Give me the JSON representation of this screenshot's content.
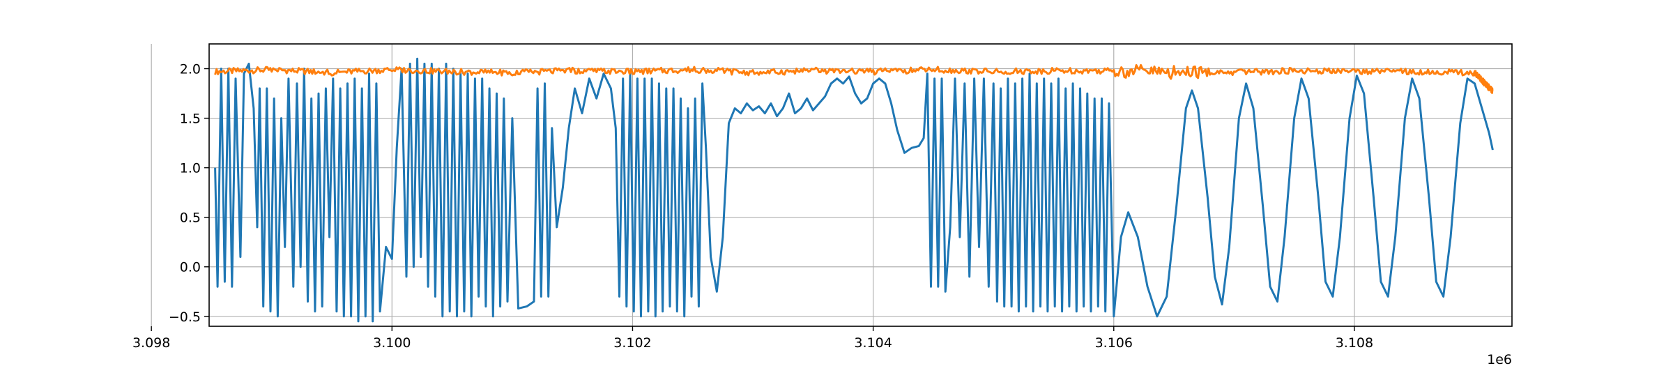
{
  "chart_data": {
    "type": "line",
    "title": "",
    "xlabel": "",
    "ylabel": "",
    "x_offset_label": "1e6",
    "xlim": [
      3.09848,
      3.10931
    ],
    "ylim": [
      -0.6,
      2.25
    ],
    "grid": true,
    "legend": "none",
    "xticks": [
      {
        "value": 3.098,
        "label": "3.098"
      },
      {
        "value": 3.1,
        "label": "3.100"
      },
      {
        "value": 3.102,
        "label": "3.102"
      },
      {
        "value": 3.104,
        "label": "3.104"
      },
      {
        "value": 3.106,
        "label": "3.106"
      },
      {
        "value": 3.108,
        "label": "3.108"
      }
    ],
    "yticks": [
      {
        "value": -0.5,
        "label": "−0.5"
      },
      {
        "value": 0.0,
        "label": "0.0"
      },
      {
        "value": 0.5,
        "label": "0.5"
      },
      {
        "value": 1.0,
        "label": "1.0"
      },
      {
        "value": 1.5,
        "label": "1.5"
      },
      {
        "value": 2.0,
        "label": "2.0"
      }
    ],
    "series": [
      {
        "color": "#1f77b4",
        "points": [
          [
            3.09853,
            1.0
          ],
          [
            3.09855,
            -0.2
          ],
          [
            3.09858,
            2.0
          ],
          [
            3.09861,
            -0.15
          ],
          [
            3.09864,
            2.0
          ],
          [
            3.09867,
            -0.2
          ],
          [
            3.0987,
            1.9
          ],
          [
            3.09874,
            0.1
          ],
          [
            3.09877,
            1.95
          ],
          [
            3.09881,
            2.05
          ],
          [
            3.09885,
            1.6
          ],
          [
            3.09888,
            0.4
          ],
          [
            3.0989,
            1.8
          ],
          [
            3.09893,
            -0.4
          ],
          [
            3.09896,
            1.8
          ],
          [
            3.09899,
            -0.45
          ],
          [
            3.09902,
            1.7
          ],
          [
            3.09905,
            -0.5
          ],
          [
            3.09908,
            1.5
          ],
          [
            3.09911,
            0.2
          ],
          [
            3.09914,
            1.9
          ],
          [
            3.09918,
            -0.2
          ],
          [
            3.09921,
            1.85
          ],
          [
            3.09924,
            0.0
          ],
          [
            3.09927,
            2.0
          ],
          [
            3.0993,
            -0.35
          ],
          [
            3.09933,
            1.7
          ],
          [
            3.09936,
            -0.45
          ],
          [
            3.09939,
            1.75
          ],
          [
            3.09942,
            -0.4
          ],
          [
            3.09945,
            1.8
          ],
          [
            3.09948,
            0.3
          ],
          [
            3.09951,
            1.9
          ],
          [
            3.09954,
            -0.45
          ],
          [
            3.09957,
            1.8
          ],
          [
            3.0996,
            -0.5
          ],
          [
            3.09963,
            1.85
          ],
          [
            3.09966,
            -0.5
          ],
          [
            3.09969,
            1.9
          ],
          [
            3.09972,
            -0.55
          ],
          [
            3.09975,
            1.8
          ],
          [
            3.09978,
            -0.5
          ],
          [
            3.09981,
            1.95
          ],
          [
            3.09984,
            -0.55
          ],
          [
            3.09987,
            1.85
          ],
          [
            3.0999,
            -0.45
          ],
          [
            3.09995,
            0.2
          ],
          [
            3.1,
            0.08
          ],
          [
            3.10004,
            1.2
          ],
          [
            3.10008,
            2.0
          ],
          [
            3.10012,
            -0.1
          ],
          [
            3.10015,
            2.05
          ],
          [
            3.10018,
            0.0
          ],
          [
            3.10021,
            2.1
          ],
          [
            3.10024,
            0.1
          ],
          [
            3.10027,
            2.05
          ],
          [
            3.1003,
            -0.2
          ],
          [
            3.10033,
            2.05
          ],
          [
            3.10036,
            -0.3
          ],
          [
            3.10039,
            2.0
          ],
          [
            3.10042,
            -0.5
          ],
          [
            3.10045,
            2.05
          ],
          [
            3.10048,
            -0.45
          ],
          [
            3.10051,
            2.0
          ],
          [
            3.10054,
            -0.5
          ],
          [
            3.10057,
            1.95
          ],
          [
            3.1006,
            -0.45
          ],
          [
            3.10063,
            1.95
          ],
          [
            3.10066,
            -0.5
          ],
          [
            3.10069,
            1.9
          ],
          [
            3.10072,
            -0.3
          ],
          [
            3.10075,
            1.9
          ],
          [
            3.10078,
            -0.4
          ],
          [
            3.10081,
            1.8
          ],
          [
            3.10084,
            -0.5
          ],
          [
            3.10087,
            1.75
          ],
          [
            3.1009,
            -0.4
          ],
          [
            3.10093,
            1.7
          ],
          [
            3.10096,
            -0.35
          ],
          [
            3.101,
            1.5
          ],
          [
            3.10105,
            -0.42
          ],
          [
            3.10112,
            -0.4
          ],
          [
            3.10118,
            -0.35
          ],
          [
            3.10121,
            1.8
          ],
          [
            3.10124,
            -0.3
          ],
          [
            3.10127,
            1.85
          ],
          [
            3.1013,
            -0.3
          ],
          [
            3.10133,
            1.4
          ],
          [
            3.10137,
            0.4
          ],
          [
            3.10142,
            0.8
          ],
          [
            3.10147,
            1.4
          ],
          [
            3.10152,
            1.8
          ],
          [
            3.10158,
            1.55
          ],
          [
            3.10164,
            1.9
          ],
          [
            3.1017,
            1.7
          ],
          [
            3.10176,
            1.95
          ],
          [
            3.10182,
            1.8
          ],
          [
            3.10186,
            1.4
          ],
          [
            3.10189,
            -0.3
          ],
          [
            3.10192,
            1.9
          ],
          [
            3.10195,
            -0.4
          ],
          [
            3.10198,
            1.95
          ],
          [
            3.10201,
            -0.45
          ],
          [
            3.10204,
            1.9
          ],
          [
            3.10207,
            -0.5
          ],
          [
            3.1021,
            1.9
          ],
          [
            3.10213,
            -0.45
          ],
          [
            3.10216,
            1.9
          ],
          [
            3.10219,
            -0.5
          ],
          [
            3.10222,
            1.85
          ],
          [
            3.10225,
            -0.45
          ],
          [
            3.10228,
            1.8
          ],
          [
            3.10231,
            -0.4
          ],
          [
            3.10234,
            1.8
          ],
          [
            3.10237,
            -0.45
          ],
          [
            3.1024,
            1.7
          ],
          [
            3.10243,
            -0.5
          ],
          [
            3.10246,
            1.6
          ],
          [
            3.10249,
            -0.3
          ],
          [
            3.10252,
            1.7
          ],
          [
            3.10255,
            -0.4
          ],
          [
            3.10258,
            1.85
          ],
          [
            3.10261,
            1.2
          ],
          [
            3.10265,
            0.1
          ],
          [
            3.1027,
            -0.25
          ],
          [
            3.10275,
            0.3
          ],
          [
            3.1028,
            1.45
          ],
          [
            3.10285,
            1.6
          ],
          [
            3.1029,
            1.55
          ],
          [
            3.10295,
            1.65
          ],
          [
            3.103,
            1.58
          ],
          [
            3.10305,
            1.62
          ],
          [
            3.1031,
            1.55
          ],
          [
            3.10315,
            1.65
          ],
          [
            3.1032,
            1.52
          ],
          [
            3.10325,
            1.6
          ],
          [
            3.1033,
            1.75
          ],
          [
            3.10335,
            1.55
          ],
          [
            3.1034,
            1.6
          ],
          [
            3.10345,
            1.7
          ],
          [
            3.1035,
            1.58
          ],
          [
            3.10355,
            1.65
          ],
          [
            3.1036,
            1.72
          ],
          [
            3.10365,
            1.85
          ],
          [
            3.1037,
            1.9
          ],
          [
            3.10375,
            1.85
          ],
          [
            3.1038,
            1.92
          ],
          [
            3.10385,
            1.75
          ],
          [
            3.1039,
            1.65
          ],
          [
            3.10395,
            1.7
          ],
          [
            3.104,
            1.85
          ],
          [
            3.10405,
            1.9
          ],
          [
            3.1041,
            1.85
          ],
          [
            3.10415,
            1.65
          ],
          [
            3.1042,
            1.38
          ],
          [
            3.10426,
            1.15
          ],
          [
            3.10432,
            1.2
          ],
          [
            3.10438,
            1.22
          ],
          [
            3.10442,
            1.3
          ],
          [
            3.10445,
            1.95
          ],
          [
            3.10448,
            -0.2
          ],
          [
            3.10451,
            1.9
          ],
          [
            3.10454,
            -0.2
          ],
          [
            3.10457,
            1.9
          ],
          [
            3.1046,
            -0.25
          ],
          [
            3.10464,
            0.4
          ],
          [
            3.10468,
            1.9
          ],
          [
            3.10472,
            0.3
          ],
          [
            3.10476,
            1.85
          ],
          [
            3.1048,
            -0.1
          ],
          [
            3.10484,
            1.9
          ],
          [
            3.10488,
            0.2
          ],
          [
            3.10492,
            1.9
          ],
          [
            3.10496,
            -0.2
          ],
          [
            3.105,
            1.85
          ],
          [
            3.10503,
            -0.35
          ],
          [
            3.10506,
            1.8
          ],
          [
            3.10509,
            -0.4
          ],
          [
            3.10512,
            1.9
          ],
          [
            3.10515,
            -0.4
          ],
          [
            3.10518,
            1.85
          ],
          [
            3.10521,
            -0.45
          ],
          [
            3.10524,
            1.9
          ],
          [
            3.10527,
            -0.4
          ],
          [
            3.1053,
            1.95
          ],
          [
            3.10533,
            -0.45
          ],
          [
            3.10536,
            1.85
          ],
          [
            3.10539,
            -0.4
          ],
          [
            3.10542,
            1.9
          ],
          [
            3.10545,
            -0.45
          ],
          [
            3.10548,
            1.85
          ],
          [
            3.10551,
            -0.4
          ],
          [
            3.10554,
            1.9
          ],
          [
            3.10557,
            -0.45
          ],
          [
            3.1056,
            1.8
          ],
          [
            3.10563,
            -0.4
          ],
          [
            3.10566,
            1.85
          ],
          [
            3.10569,
            -0.45
          ],
          [
            3.10572,
            1.8
          ],
          [
            3.10575,
            -0.4
          ],
          [
            3.10578,
            1.75
          ],
          [
            3.10581,
            -0.45
          ],
          [
            3.10584,
            1.7
          ],
          [
            3.10587,
            -0.4
          ],
          [
            3.1059,
            1.7
          ],
          [
            3.10593,
            -0.45
          ],
          [
            3.10596,
            1.65
          ],
          [
            3.106,
            -0.5
          ],
          [
            3.10606,
            0.3
          ],
          [
            3.10612,
            0.55
          ],
          [
            3.1062,
            0.3
          ],
          [
            3.10628,
            -0.2
          ],
          [
            3.10636,
            -0.5
          ],
          [
            3.10644,
            -0.3
          ],
          [
            3.10652,
            0.6
          ],
          [
            3.1066,
            1.6
          ],
          [
            3.10665,
            1.78
          ],
          [
            3.1067,
            1.6
          ],
          [
            3.10678,
            0.7
          ],
          [
            3.10684,
            -0.1
          ],
          [
            3.1069,
            -0.38
          ],
          [
            3.10696,
            0.2
          ],
          [
            3.10704,
            1.5
          ],
          [
            3.1071,
            1.85
          ],
          [
            3.10716,
            1.6
          ],
          [
            3.10724,
            0.6
          ],
          [
            3.1073,
            -0.2
          ],
          [
            3.10736,
            -0.35
          ],
          [
            3.10742,
            0.3
          ],
          [
            3.1075,
            1.5
          ],
          [
            3.10756,
            1.9
          ],
          [
            3.10762,
            1.7
          ],
          [
            3.1077,
            0.7
          ],
          [
            3.10776,
            -0.15
          ],
          [
            3.10782,
            -0.3
          ],
          [
            3.10788,
            0.3
          ],
          [
            3.10796,
            1.5
          ],
          [
            3.10802,
            1.93
          ],
          [
            3.10808,
            1.75
          ],
          [
            3.10816,
            0.7
          ],
          [
            3.10822,
            -0.15
          ],
          [
            3.10828,
            -0.3
          ],
          [
            3.10834,
            0.3
          ],
          [
            3.10842,
            1.5
          ],
          [
            3.10848,
            1.9
          ],
          [
            3.10854,
            1.7
          ],
          [
            3.10862,
            0.7
          ],
          [
            3.10868,
            -0.15
          ],
          [
            3.10874,
            -0.3
          ],
          [
            3.1088,
            0.3
          ],
          [
            3.10888,
            1.45
          ],
          [
            3.10894,
            1.9
          ],
          [
            3.109,
            1.85
          ],
          [
            3.10906,
            1.6
          ],
          [
            3.10912,
            1.35
          ],
          [
            3.10915,
            1.18
          ]
        ]
      },
      {
        "color": "#ff7f0e",
        "points": [
          [
            3.09853,
            1.97
          ],
          [
            3.099,
            1.99
          ],
          [
            3.0995,
            1.96
          ],
          [
            3.1,
            1.99
          ],
          [
            3.1005,
            1.97
          ],
          [
            3.101,
            1.96
          ],
          [
            3.1015,
            1.98
          ],
          [
            3.102,
            1.97
          ],
          [
            3.1025,
            1.99
          ],
          [
            3.103,
            1.96
          ],
          [
            3.1035,
            1.98
          ],
          [
            3.104,
            1.97
          ],
          [
            3.1045,
            1.99
          ],
          [
            3.105,
            1.97
          ],
          [
            3.1055,
            1.98
          ],
          [
            3.106,
            1.98
          ],
          [
            3.1065,
            1.96
          ],
          [
            3.107,
            1.96
          ],
          [
            3.1075,
            1.98
          ],
          [
            3.108,
            1.97
          ],
          [
            3.1085,
            1.97
          ],
          [
            3.109,
            1.96
          ],
          [
            3.10905,
            1.9
          ],
          [
            3.1091,
            1.83
          ],
          [
            3.10915,
            1.78
          ]
        ]
      }
    ]
  }
}
